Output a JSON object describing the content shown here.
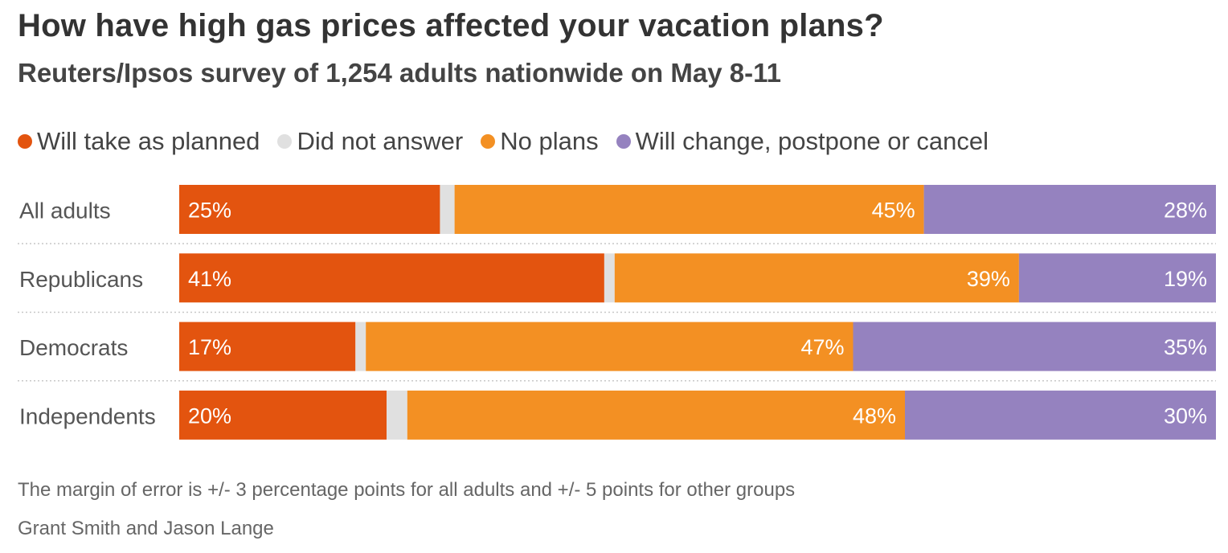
{
  "chart_data": {
    "type": "bar",
    "orientation": "horizontal",
    "stacked": true,
    "title": "How have high gas prices affected your vacation plans?",
    "subtitle": "Reuters/Ipsos survey of 1,254 adults nationwide on May 8-11",
    "categories": [
      "All adults",
      "Republicans",
      "Democrats",
      "Independents"
    ],
    "series": [
      {
        "name": "Will take as planned",
        "color": "#e3540f",
        "values": [
          25,
          41,
          17,
          20
        ],
        "labels": [
          "25%",
          "41%",
          "17%",
          "20%"
        ]
      },
      {
        "name": "Did not answer",
        "color": "#e0e0e0",
        "values": [
          1.4,
          1,
          1,
          2
        ],
        "labels": [
          "",
          "",
          "",
          ""
        ]
      },
      {
        "name": "No plans",
        "color": "#f39023",
        "values": [
          45,
          39,
          47,
          48
        ],
        "labels": [
          "45%",
          "39%",
          "47%",
          "48%"
        ]
      },
      {
        "name": "Will change, postpone or cancel",
        "color": "#9582bf",
        "values": [
          28,
          19,
          35,
          30
        ],
        "labels": [
          "28%",
          "19%",
          "35%",
          "30%"
        ]
      }
    ],
    "legend": "top-left",
    "grid": false,
    "note": "The margin of error is +/- 3 percentage points for all adults and +/- 5 points for other groups",
    "credit": "Grant Smith and Jason Lange"
  }
}
